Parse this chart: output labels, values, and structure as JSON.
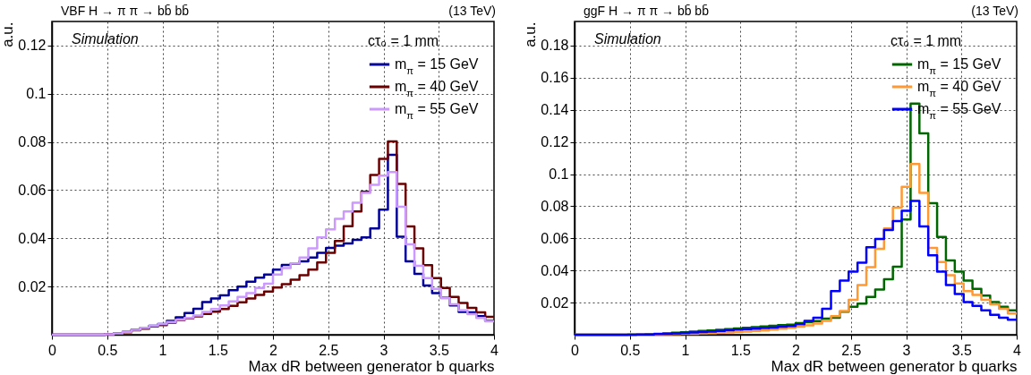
{
  "chart_data": [
    {
      "type": "histogram",
      "title": "VBF H → π π → bb̄ bb̄",
      "xlabel": "Max dR between generator b quarks",
      "ylabel": "a.u.",
      "legend_title": "cτ₀ = 1 mm",
      "annotations": [
        "Simulation",
        "(13 TeV)"
      ],
      "bins": [
        0,
        0.08,
        0.16,
        0.24,
        0.32,
        0.4,
        0.48,
        0.56,
        0.64,
        0.72,
        0.8,
        0.88,
        0.96,
        1.04,
        1.12,
        1.2,
        1.28,
        1.36,
        1.44,
        1.52,
        1.6,
        1.68,
        1.76,
        1.84,
        1.92,
        2,
        2.08,
        2.16,
        2.24,
        2.32,
        2.4,
        2.48,
        2.56,
        2.64,
        2.72,
        2.8,
        2.88,
        2.96,
        3.04,
        3.12,
        3.2,
        3.28,
        3.36,
        3.44,
        3.52,
        3.6,
        3.68,
        3.76,
        3.84,
        3.92,
        4
      ],
      "series": [
        {
          "name": "m$_{π}$ = 15 GeV",
          "color": "#000099",
          "values": [
            0,
            0,
            0,
            0,
            0,
            0,
            0.0002,
            0.0006,
            0.0012,
            0.0021,
            0.0029,
            0.0037,
            0.0045,
            0.0058,
            0.0072,
            0.009,
            0.0108,
            0.0136,
            0.015,
            0.0163,
            0.0185,
            0.02,
            0.022,
            0.0237,
            0.025,
            0.027,
            0.029,
            0.0295,
            0.0305,
            0.032,
            0.034,
            0.036,
            0.037,
            0.0379,
            0.0394,
            0.0404,
            0.0441,
            0.0519,
            0.0747,
            0.0407,
            0.0305,
            0.0253,
            0.0204,
            0.0173,
            0.0153,
            0.0122,
            0.0095,
            0.0093,
            0.0077,
            0.0058
          ]
        },
        {
          "name": "m$_{π}$ = 40 GeV",
          "color": "#6b0000",
          "values": [
            0,
            0,
            0,
            0,
            0,
            0,
            0.0002,
            0.0005,
            0.001,
            0.0019,
            0.0025,
            0.0034,
            0.004,
            0.005,
            0.006,
            0.0068,
            0.0076,
            0.0086,
            0.0096,
            0.0107,
            0.012,
            0.0135,
            0.015,
            0.0165,
            0.0179,
            0.0196,
            0.021,
            0.0228,
            0.0247,
            0.027,
            0.03,
            0.034,
            0.0389,
            0.045,
            0.0512,
            0.0593,
            0.0663,
            0.073,
            0.0802,
            0.0626,
            0.0449,
            0.0358,
            0.0289,
            0.0235,
            0.0194,
            0.0157,
            0.0132,
            0.0111,
            0.0093,
            0.0074
          ]
        },
        {
          "name": "m$_{π}$ = 55 GeV",
          "color": "#cc99ff",
          "values": [
            0,
            0,
            0,
            0,
            0,
            0,
            0.0002,
            0.0006,
            0.0012,
            0.002,
            0.0029,
            0.0037,
            0.0045,
            0.0053,
            0.0062,
            0.007,
            0.008,
            0.0095,
            0.0107,
            0.0122,
            0.0138,
            0.0157,
            0.0173,
            0.0194,
            0.0212,
            0.025,
            0.0277,
            0.0296,
            0.032,
            0.0358,
            0.0404,
            0.0437,
            0.0481,
            0.0512,
            0.0548,
            0.0589,
            0.0622,
            0.066,
            0.0675,
            0.0531,
            0.0375,
            0.0286,
            0.0235,
            0.019,
            0.0151,
            0.0126,
            0.0101,
            0.0085,
            0.007,
            0.0056
          ]
        }
      ],
      "xlim": [
        0,
        4
      ],
      "xticks": [
        0,
        0.5,
        1,
        1.5,
        2,
        2.5,
        3,
        3.5,
        4
      ],
      "ylim": [
        0,
        0.13
      ],
      "yticks": [
        0.02,
        0.04,
        0.06,
        0.08,
        0.1,
        0.12
      ],
      "grid": true,
      "legend": "top right",
      "line_style": "solid",
      "marker": "none"
    },
    {
      "type": "histogram",
      "title": "ggF H → π π → bb̄ bb̄",
      "xlabel": "Max dR between generator b quarks",
      "ylabel": "a.u.",
      "legend_title": "cτ₀ = 1 mm",
      "annotations": [
        "Simulation",
        "(13 TeV)"
      ],
      "bins": [
        0,
        0.08,
        0.16,
        0.24,
        0.32,
        0.4,
        0.48,
        0.56,
        0.64,
        0.72,
        0.8,
        0.88,
        0.96,
        1.04,
        1.12,
        1.2,
        1.28,
        1.36,
        1.44,
        1.52,
        1.6,
        1.68,
        1.76,
        1.84,
        1.92,
        2,
        2.08,
        2.16,
        2.24,
        2.32,
        2.4,
        2.48,
        2.56,
        2.64,
        2.72,
        2.8,
        2.88,
        2.96,
        3.04,
        3.12,
        3.2,
        3.28,
        3.36,
        3.44,
        3.52,
        3.6,
        3.68,
        3.76,
        3.84,
        3.92,
        4
      ],
      "series": [
        {
          "name": "m$_{π}$ = 15 GeV",
          "color": "#006600",
          "values": [
            0,
            0,
            0,
            0,
            0,
            0,
            0.0001,
            0.0002,
            0.0004,
            0.0006,
            0.0009,
            0.0012,
            0.0016,
            0.002,
            0.0023,
            0.0027,
            0.0031,
            0.0035,
            0.0039,
            0.0043,
            0.0047,
            0.0052,
            0.0056,
            0.006,
            0.0063,
            0.0072,
            0.0078,
            0.0085,
            0.01,
            0.0106,
            0.0143,
            0.0174,
            0.0193,
            0.0235,
            0.0281,
            0.0346,
            0.0424,
            0.0717,
            0.1439,
            0.1254,
            0.0819,
            0.0609,
            0.0463,
            0.0393,
            0.0337,
            0.0285,
            0.0244,
            0.0204,
            0.0174,
            0.0152
          ]
        },
        {
          "name": "m$_{π}$ = 40 GeV",
          "color": "#ff9933",
          "values": [
            0,
            0,
            0,
            0,
            0,
            0,
            0,
            0.0001,
            0.0001,
            0.0002,
            0.0003,
            0.0004,
            0.0005,
            0.0006,
            0.0008,
            0.001,
            0.0012,
            0.0014,
            0.0017,
            0.002,
            0.0023,
            0.0027,
            0.0032,
            0.0037,
            0.0043,
            0.005,
            0.0059,
            0.0069,
            0.0087,
            0.0115,
            0.0148,
            0.0217,
            0.0309,
            0.042,
            0.0535,
            0.0661,
            0.0791,
            0.092,
            0.1063,
            0.0883,
            0.0541,
            0.0452,
            0.037,
            0.0319,
            0.0272,
            0.0248,
            0.0217,
            0.0189,
            0.0161,
            0.0133
          ]
        },
        {
          "name": "m$_{π}$ = 55 GeV",
          "color": "#0000ff",
          "values": [
            0,
            0,
            0,
            0,
            0,
            0,
            0,
            0.0001,
            0.0002,
            0.0004,
            0.0006,
            0.0008,
            0.0011,
            0.0014,
            0.0017,
            0.002,
            0.0024,
            0.0028,
            0.0032,
            0.0035,
            0.0038,
            0.0042,
            0.0045,
            0.005,
            0.0055,
            0.0065,
            0.0087,
            0.0106,
            0.0161,
            0.0272,
            0.0337,
            0.0393,
            0.0448,
            0.0544,
            0.0596,
            0.0652,
            0.0707,
            0.0772,
            0.0833,
            0.0674,
            0.0494,
            0.0393,
            0.0309,
            0.0254,
            0.0204,
            0.018,
            0.0152,
            0.0124,
            0.0106,
            0.0093
          ]
        }
      ],
      "xlim": [
        0,
        4
      ],
      "xticks": [
        0,
        0.5,
        1,
        1.5,
        2,
        2.5,
        3,
        3.5,
        4
      ],
      "ylim": [
        0,
        0.195
      ],
      "yticks": [
        0.02,
        0.04,
        0.06,
        0.08,
        0.1,
        0.12,
        0.14,
        0.16,
        0.18
      ],
      "grid": true,
      "legend": "top right",
      "line_style": "solid",
      "marker": "none"
    }
  ]
}
